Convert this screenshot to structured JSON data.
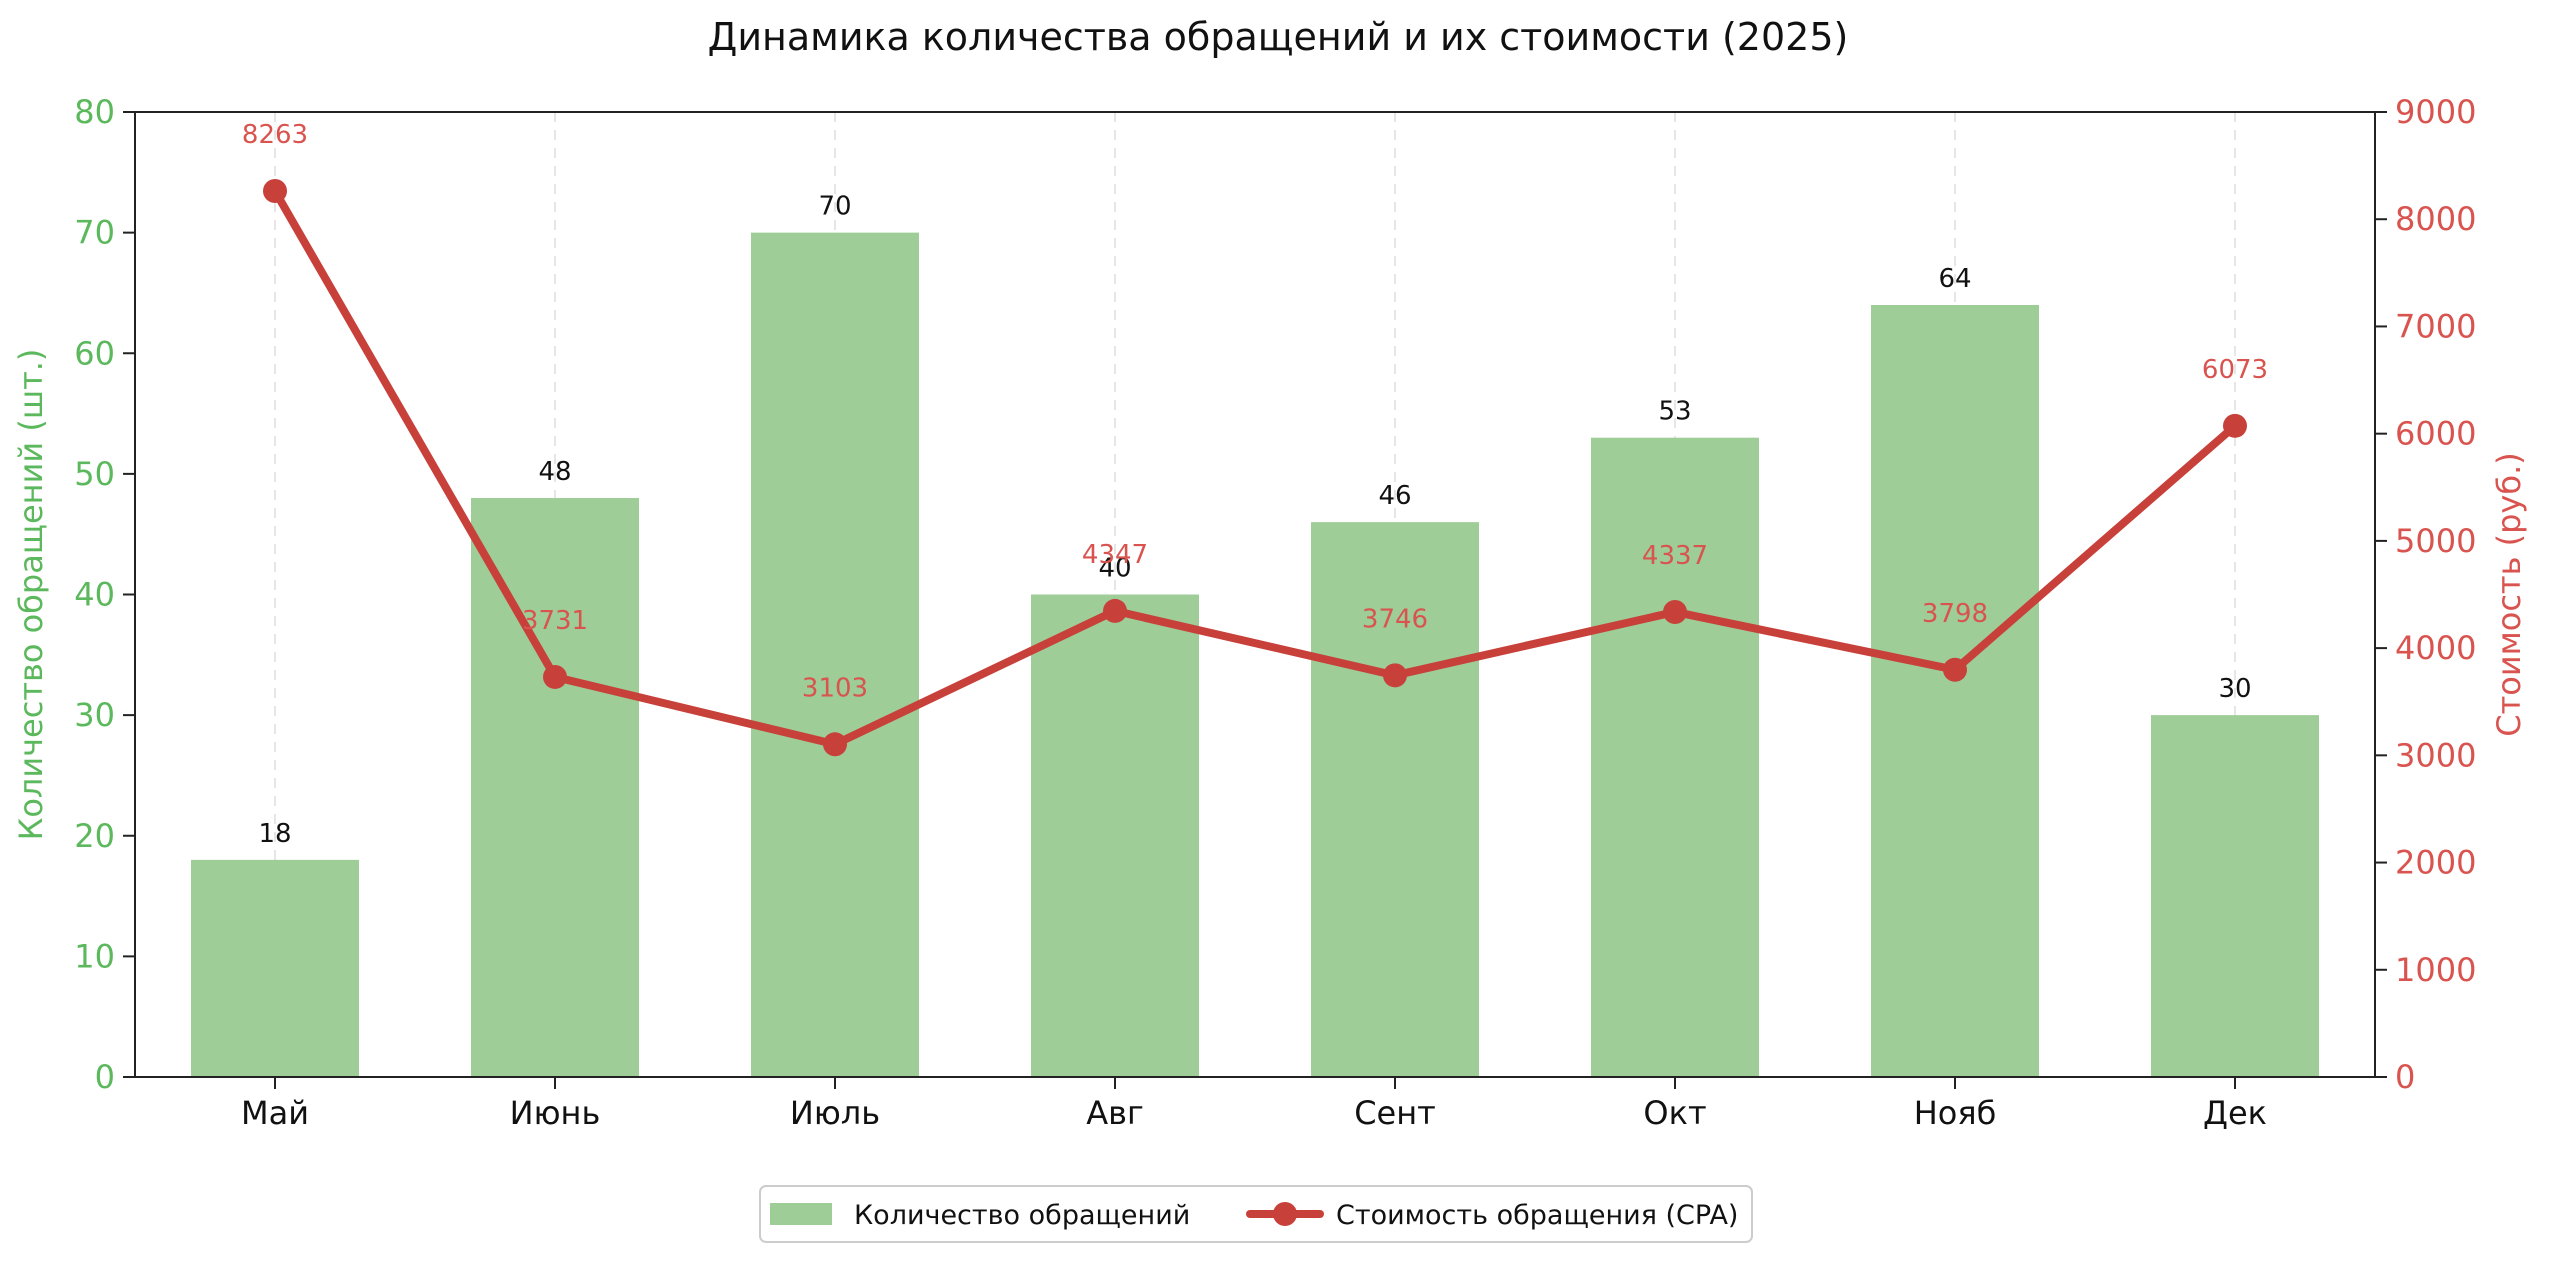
{
  "chart_data": {
    "type": "bar+line",
    "title": "Динамика количества обращений и их стоимости (2025)",
    "categories": [
      "Май",
      "Июнь",
      "Июль",
      "Авг",
      "Сент",
      "Окт",
      "Нояб",
      "Дек"
    ],
    "series": [
      {
        "name": "Количество обращений",
        "type": "bar",
        "axis": "left",
        "values": [
          18,
          48,
          70,
          40,
          46,
          53,
          64,
          30
        ]
      },
      {
        "name": "Стоимость обращения (CPA)",
        "type": "line",
        "axis": "right",
        "values": [
          8263,
          3731,
          3103,
          4347,
          3746,
          4337,
          3798,
          6073
        ]
      }
    ],
    "y_left": {
      "label": "Количество обращений (шт.)",
      "ylim": [
        0,
        80
      ],
      "ticks": [
        0,
        10,
        20,
        30,
        40,
        50,
        60,
        70,
        80
      ]
    },
    "y_right": {
      "label": "Стоимость (руб.)",
      "ylim": [
        0,
        9000
      ],
      "ticks": [
        0,
        1000,
        2000,
        3000,
        4000,
        5000,
        6000,
        7000,
        8000,
        9000
      ]
    },
    "grid": "vertical-dashed",
    "legend_position": "bottom-center",
    "colors": {
      "bar": "#9ecd98",
      "line": "#c8403a",
      "left_axis": "#5cb85c",
      "right_axis": "#d9534f",
      "text": "#111111",
      "grid": "#dddddd"
    }
  }
}
